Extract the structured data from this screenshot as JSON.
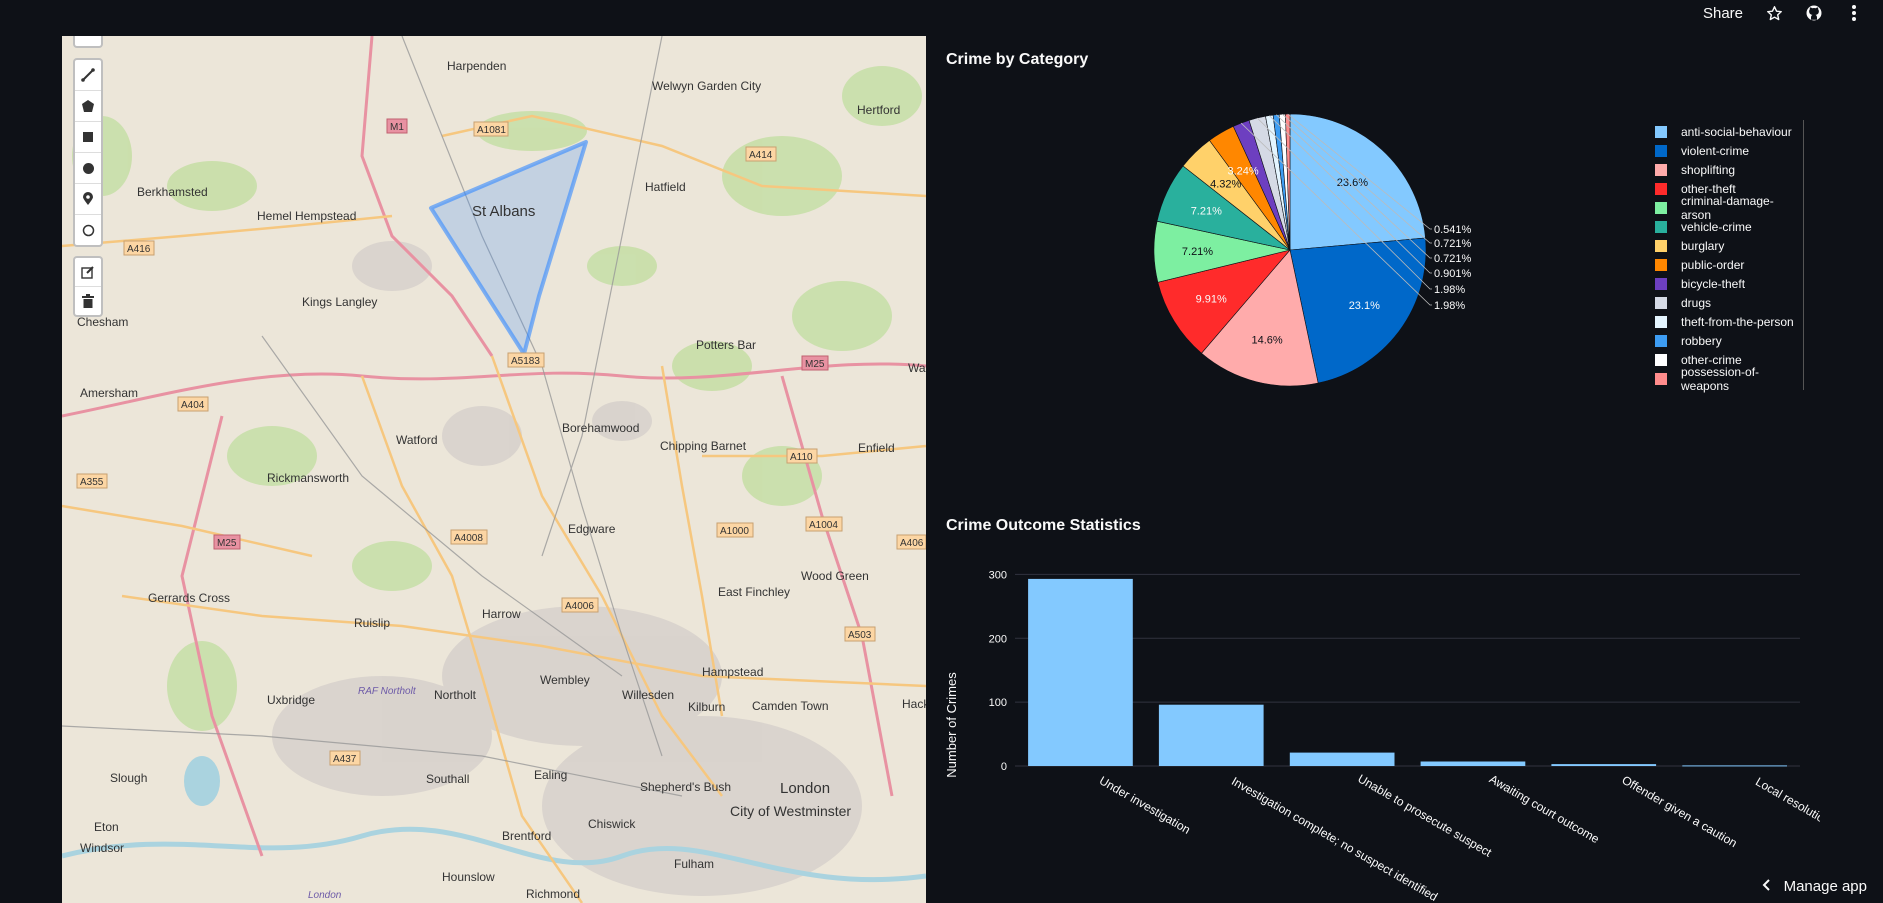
{
  "header": {
    "share_label": "Share",
    "icons": [
      "star-icon",
      "github-icon",
      "more-vert-icon"
    ]
  },
  "map": {
    "draw_tools": [
      "polyline-icon",
      "polygon-icon",
      "rectangle-icon",
      "circle-icon",
      "marker-icon",
      "circlemarker-icon"
    ],
    "edit_tools": [
      "edit-icon",
      "trash-icon"
    ],
    "places": [
      "Harpenden",
      "Welwyn Garden City",
      "Hertford",
      "Berkhamsted",
      "Hemel Hempstead",
      "St Albans",
      "Hatfield",
      "Kings Langley",
      "Chesham",
      "Potters Bar",
      "Amersham",
      "Borehamwood",
      "Watford",
      "Chipping Barnet",
      "Enfield",
      "Rickmansworth",
      "Edgware",
      "Wood Green",
      "East Finchley",
      "Gerrards Cross",
      "Harrow",
      "Ruislip",
      "Hampstead",
      "Wembley",
      "Willesden",
      "Kilburn",
      "Camden Town",
      "Northolt",
      "Uxbridge",
      "RAF Northolt",
      "Southall",
      "Ealing",
      "Shepherd's Bush",
      "London",
      "City of Westminster",
      "Slough",
      "Eton",
      "Windsor",
      "Brentford",
      "Chiswick",
      "Fulham",
      "Hounslow",
      "Richmond",
      "Hack",
      "Wal",
      "London"
    ],
    "roads": [
      "M1",
      "A1081",
      "A414",
      "A416",
      "A5183",
      "M25",
      "A404",
      "A355",
      "A110",
      "A4008",
      "A1000",
      "A1004",
      "A406",
      "A4006",
      "A503",
      "A437",
      "M25"
    ]
  },
  "pie": {
    "title": "Crime by Category",
    "outside_labels": [
      "0.541%",
      "0.721%",
      "0.721%",
      "0.901%",
      "1.98%",
      "1.98%"
    ]
  },
  "bar": {
    "title": "Crime Outcome Statistics",
    "ylabel": "Number of Crimes"
  },
  "footer": {
    "manage_label": "Manage app"
  },
  "chart_data": [
    {
      "type": "pie",
      "title": "Crime by Category",
      "labels": [
        "anti-social-behaviour",
        "violent-crime",
        "shoplifting",
        "other-theft",
        "criminal-damage-arson",
        "vehicle-crime",
        "burglary",
        "public-order",
        "bicycle-theft",
        "drugs",
        "theft-from-the-person",
        "robbery",
        "other-crime",
        "possession-of-weapons"
      ],
      "percent_labels": [
        "23.6%",
        "23.1%",
        "14.6%",
        "9.91%",
        "7.21%",
        "7.21%",
        "4.32%",
        "3.24%",
        "1.98%",
        "1.98%",
        "0.901%",
        "0.721%",
        "0.721%",
        "0.541%"
      ],
      "values": [
        23.6,
        23.1,
        14.6,
        9.91,
        7.21,
        7.21,
        4.32,
        3.24,
        1.98,
        1.98,
        0.901,
        0.721,
        0.721,
        0.541
      ],
      "colors": [
        "#83c9ff",
        "#0068c9",
        "#ffabab",
        "#ff2b2b",
        "#7defa1",
        "#29b09d",
        "#ffd16a",
        "#ff8700",
        "#6d3fc0",
        "#d5dae5",
        "#e4f5ff",
        "#3d9df3",
        "#ffffff",
        "#ff8c8c"
      ],
      "legend": "right"
    },
    {
      "type": "bar",
      "title": "Crime Outcome Statistics",
      "categories": [
        "Under investigation",
        "Investigation complete; no suspect identified",
        "Unable to prosecute suspect",
        "Awaiting court outcome",
        "Offender given a caution",
        "Local resolution"
      ],
      "values": [
        293,
        96,
        21,
        7,
        3,
        1
      ],
      "ylabel": "Number of Crimes",
      "xlabel": "",
      "ylim": [
        0,
        310
      ],
      "yticks": [
        "0",
        "100",
        "200",
        "300"
      ],
      "color": "#83c9ff",
      "grid": true
    }
  ]
}
